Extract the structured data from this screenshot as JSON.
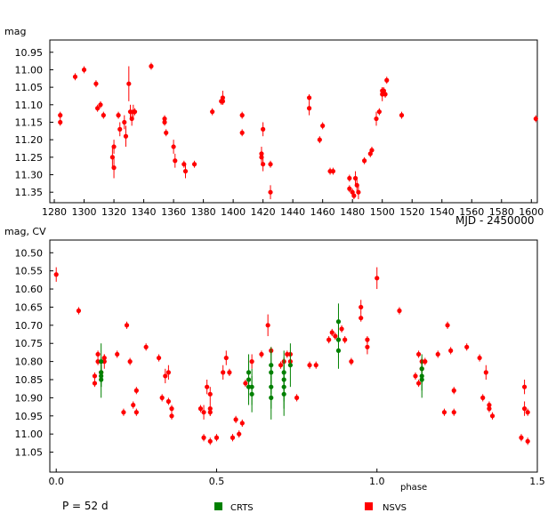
{
  "chart_data": [
    {
      "type": "scatter",
      "ylabel": "mag",
      "xlabel": "MJD - 2450000",
      "xlim": [
        1277,
        1604
      ],
      "ylim": [
        11.38,
        10.915
      ],
      "y_inverted": true,
      "grid": false,
      "x_ticks": [
        1280,
        1300,
        1320,
        1340,
        1360,
        1380,
        1400,
        1420,
        1440,
        1460,
        1480,
        1500,
        1520,
        1540,
        1560,
        1580,
        1600
      ],
      "y_ticks": [
        10.95,
        11.0,
        11.05,
        11.1,
        11.15,
        11.2,
        11.25,
        11.3,
        11.35
      ],
      "y_tick_labels": [
        "10.95",
        "11.00",
        "11.05",
        "11.10",
        "11.15",
        "11.20",
        "11.25",
        "11.30",
        "11.35"
      ],
      "series": [
        {
          "name": "NSVS",
          "color": "#ff0000",
          "points": [
            [
              1284,
              11.13,
              0.01
            ],
            [
              1284,
              11.15,
              0.01
            ],
            [
              1294,
              11.02,
              0.01
            ],
            [
              1300,
              11.0,
              0.01
            ],
            [
              1308,
              11.04,
              0.01
            ],
            [
              1309,
              11.11,
              0.01
            ],
            [
              1311,
              11.1,
              0.01
            ],
            [
              1313,
              11.13,
              0.01
            ],
            [
              1319,
              11.25,
              0.03
            ],
            [
              1320,
              11.22,
              0.02
            ],
            [
              1320,
              11.28,
              0.03
            ],
            [
              1323,
              11.13,
              0.01
            ],
            [
              1324,
              11.17,
              0.02
            ],
            [
              1327,
              11.15,
              0.02
            ],
            [
              1328,
              11.19,
              0.03
            ],
            [
              1330,
              11.04,
              0.05
            ],
            [
              1331,
              11.12,
              0.02
            ],
            [
              1332,
              11.14,
              0.02
            ],
            [
              1333,
              11.12,
              0.02
            ],
            [
              1334,
              11.12,
              0.01
            ],
            [
              1345,
              10.99,
              0.01
            ],
            [
              1354,
              11.14,
              0.01
            ],
            [
              1354,
              11.15,
              0.01
            ],
            [
              1355,
              11.18,
              0.01
            ],
            [
              1360,
              11.22,
              0.02
            ],
            [
              1361,
              11.26,
              0.02
            ],
            [
              1367,
              11.27,
              0.01
            ],
            [
              1368,
              11.29,
              0.02
            ],
            [
              1374,
              11.27,
              0.01
            ],
            [
              1386,
              11.12,
              0.01
            ],
            [
              1392,
              11.09,
              0.01
            ],
            [
              1393,
              11.08,
              0.02
            ],
            [
              1393,
              11.09,
              0.01
            ],
            [
              1406,
              11.13,
              0.01
            ],
            [
              1406,
              11.18,
              0.01
            ],
            [
              1419,
              11.24,
              0.02
            ],
            [
              1419,
              11.25,
              0.02
            ],
            [
              1420,
              11.27,
              0.02
            ],
            [
              1420,
              11.17,
              0.02
            ],
            [
              1425,
              11.27,
              0.01
            ],
            [
              1425,
              11.35,
              0.02
            ],
            [
              1451,
              11.08,
              0.01
            ],
            [
              1451,
              11.11,
              0.02
            ],
            [
              1458,
              11.2,
              0.01
            ],
            [
              1460,
              11.16,
              0.01
            ],
            [
              1465,
              11.29,
              0.01
            ],
            [
              1467,
              11.29,
              0.01
            ],
            [
              1478,
              11.31,
              0.01
            ],
            [
              1478,
              11.34,
              0.01
            ],
            [
              1480,
              11.35,
              0.01
            ],
            [
              1481,
              11.36,
              0.01
            ],
            [
              1482,
              11.31,
              0.02
            ],
            [
              1483,
              11.33,
              0.02
            ],
            [
              1484,
              11.35,
              0.02
            ],
            [
              1488,
              11.26,
              0.01
            ],
            [
              1492,
              11.24,
              0.01
            ],
            [
              1493,
              11.23,
              0.01
            ],
            [
              1496,
              11.14,
              0.02
            ],
            [
              1498,
              11.12,
              0.01
            ],
            [
              1500,
              11.06,
              0.01
            ],
            [
              1500,
              11.07,
              0.02
            ],
            [
              1501,
              11.06,
              0.01
            ],
            [
              1502,
              11.07,
              0.01
            ],
            [
              1503,
              11.03,
              0.01
            ],
            [
              1513,
              11.13,
              0.01
            ],
            [
              1603,
              11.14,
              0.01
            ]
          ]
        }
      ]
    },
    {
      "type": "scatter",
      "ylabel": "mag, CV",
      "xlabel": "phase",
      "xlim": [
        -0.02,
        1.5
      ],
      "ylim": [
        11.105,
        10.465
      ],
      "y_inverted": true,
      "grid": false,
      "x_ticks": [
        0.0,
        0.5,
        1.0,
        1.5
      ],
      "x_tick_labels": [
        "0.0",
        "0.5",
        "1.0",
        "1.5"
      ],
      "y_ticks": [
        10.5,
        10.55,
        10.6,
        10.65,
        10.7,
        10.75,
        10.8,
        10.85,
        10.9,
        10.95,
        11.0,
        11.05
      ],
      "y_tick_labels": [
        "10.50",
        "10.55",
        "10.60",
        "10.65",
        "10.70",
        "10.75",
        "10.80",
        "10.85",
        "10.90",
        "10.95",
        "11.00",
        "11.05"
      ],
      "series": [
        {
          "name": "NSVS",
          "color": "#ff0000",
          "points": [
            [
              0.0,
              10.56,
              0.02
            ],
            [
              0.07,
              10.66,
              0.01
            ],
            [
              0.12,
              10.84,
              0.01
            ],
            [
              0.12,
              10.86,
              0.01
            ],
            [
              0.13,
              10.8,
              0.01
            ],
            [
              0.13,
              10.78,
              0.01
            ],
            [
              0.14,
              10.83,
              0.02
            ],
            [
              0.15,
              10.8,
              0.02
            ],
            [
              0.15,
              10.79,
              0.01
            ],
            [
              0.19,
              10.78,
              0.01
            ],
            [
              0.21,
              10.94,
              0.01
            ],
            [
              0.22,
              10.7,
              0.01
            ],
            [
              0.23,
              10.8,
              0.01
            ],
            [
              0.24,
              10.92,
              0.01
            ],
            [
              0.25,
              10.88,
              0.01
            ],
            [
              0.25,
              10.94,
              0.01
            ],
            [
              0.28,
              10.76,
              0.01
            ],
            [
              0.32,
              10.79,
              0.01
            ],
            [
              0.33,
              10.9,
              0.01
            ],
            [
              0.34,
              10.84,
              0.02
            ],
            [
              0.35,
              10.91,
              0.01
            ],
            [
              0.35,
              10.83,
              0.02
            ],
            [
              0.36,
              10.93,
              0.01
            ],
            [
              0.36,
              10.95,
              0.01
            ],
            [
              0.45,
              10.93,
              0.01
            ],
            [
              0.46,
              11.01,
              0.01
            ],
            [
              0.46,
              10.94,
              0.02
            ],
            [
              0.47,
              10.87,
              0.02
            ],
            [
              0.48,
              10.93,
              0.02
            ],
            [
              0.48,
              10.94,
              0.01
            ],
            [
              0.48,
              11.02,
              0.01
            ],
            [
              0.48,
              10.89,
              0.02
            ],
            [
              0.5,
              11.01,
              0.01
            ],
            [
              0.52,
              10.83,
              0.02
            ],
            [
              0.53,
              10.79,
              0.02
            ],
            [
              0.54,
              10.83,
              0.01
            ],
            [
              0.55,
              11.01,
              0.01
            ],
            [
              0.56,
              10.96,
              0.01
            ],
            [
              0.57,
              11.0,
              0.01
            ],
            [
              0.58,
              10.97,
              0.01
            ],
            [
              0.59,
              10.86,
              0.01
            ],
            [
              0.61,
              10.8,
              0.02
            ],
            [
              0.64,
              10.78,
              0.01
            ],
            [
              0.66,
              10.7,
              0.03
            ],
            [
              0.67,
              10.77,
              0.01
            ],
            [
              0.7,
              10.81,
              0.01
            ],
            [
              0.71,
              10.8,
              0.01
            ],
            [
              0.72,
              10.78,
              0.01
            ],
            [
              0.73,
              10.78,
              0.01
            ],
            [
              0.73,
              10.8,
              0.01
            ],
            [
              0.75,
              10.9,
              0.01
            ],
            [
              0.79,
              10.81,
              0.01
            ],
            [
              0.81,
              10.81,
              0.01
            ],
            [
              0.85,
              10.74,
              0.01
            ],
            [
              0.86,
              10.72,
              0.01
            ],
            [
              0.87,
              10.73,
              0.01
            ],
            [
              0.89,
              10.71,
              0.01
            ],
            [
              0.9,
              10.74,
              0.01
            ],
            [
              0.92,
              10.8,
              0.01
            ],
            [
              0.95,
              10.68,
              0.01
            ],
            [
              0.95,
              10.65,
              0.02
            ],
            [
              0.97,
              10.74,
              0.01
            ],
            [
              0.97,
              10.76,
              0.02
            ],
            [
              1.0,
              10.57,
              0.03
            ],
            [
              1.07,
              10.66,
              0.01
            ],
            [
              1.12,
              10.84,
              0.01
            ],
            [
              1.13,
              10.78,
              0.01
            ],
            [
              1.13,
              10.86,
              0.01
            ],
            [
              1.14,
              10.8,
              0.01
            ],
            [
              1.14,
              10.82,
              0.02
            ],
            [
              1.15,
              10.8,
              0.01
            ],
            [
              1.19,
              10.78,
              0.01
            ],
            [
              1.21,
              10.94,
              0.01
            ],
            [
              1.22,
              10.7,
              0.01
            ],
            [
              1.23,
              10.77,
              0.01
            ],
            [
              1.24,
              10.88,
              0.01
            ],
            [
              1.24,
              10.94,
              0.01
            ],
            [
              1.28,
              10.76,
              0.01
            ],
            [
              1.32,
              10.79,
              0.01
            ],
            [
              1.33,
              10.9,
              0.01
            ],
            [
              1.34,
              10.83,
              0.02
            ],
            [
              1.35,
              10.92,
              0.01
            ],
            [
              1.35,
              10.93,
              0.01
            ],
            [
              1.36,
              10.95,
              0.01
            ],
            [
              1.45,
              11.01,
              0.01
            ],
            [
              1.46,
              10.93,
              0.02
            ],
            [
              1.46,
              10.87,
              0.02
            ],
            [
              1.47,
              10.94,
              0.01
            ],
            [
              1.47,
              11.02,
              0.01
            ]
          ]
        },
        {
          "name": "CRTS",
          "color": "#008000",
          "points": [
            [
              0.14,
              10.84,
              0.03
            ],
            [
              0.14,
              10.83,
              0.04
            ],
            [
              0.14,
              10.8,
              0.05
            ],
            [
              0.14,
              10.85,
              0.05
            ],
            [
              0.6,
              10.85,
              0.05
            ],
            [
              0.6,
              10.83,
              0.05
            ],
            [
              0.6,
              10.87,
              0.05
            ],
            [
              0.61,
              10.89,
              0.05
            ],
            [
              0.61,
              10.87,
              0.05
            ],
            [
              0.67,
              10.83,
              0.06
            ],
            [
              0.67,
              10.87,
              0.06
            ],
            [
              0.67,
              10.9,
              0.06
            ],
            [
              0.67,
              10.81,
              0.05
            ],
            [
              0.71,
              10.85,
              0.06
            ],
            [
              0.71,
              10.83,
              0.06
            ],
            [
              0.71,
              10.87,
              0.06
            ],
            [
              0.71,
              10.89,
              0.06
            ],
            [
              0.73,
              10.81,
              0.06
            ],
            [
              0.88,
              10.74,
              0.05
            ],
            [
              0.88,
              10.69,
              0.05
            ],
            [
              0.88,
              10.77,
              0.05
            ],
            [
              1.14,
              10.84,
              0.04
            ],
            [
              1.14,
              10.82,
              0.04
            ],
            [
              1.14,
              10.85,
              0.05
            ]
          ]
        }
      ],
      "annotation": "P = 52 d",
      "legend": [
        {
          "label": "CRTS",
          "color": "#008000"
        },
        {
          "label": "NSVS",
          "color": "#ff0000"
        }
      ],
      "legend_placement": "bottom"
    }
  ]
}
